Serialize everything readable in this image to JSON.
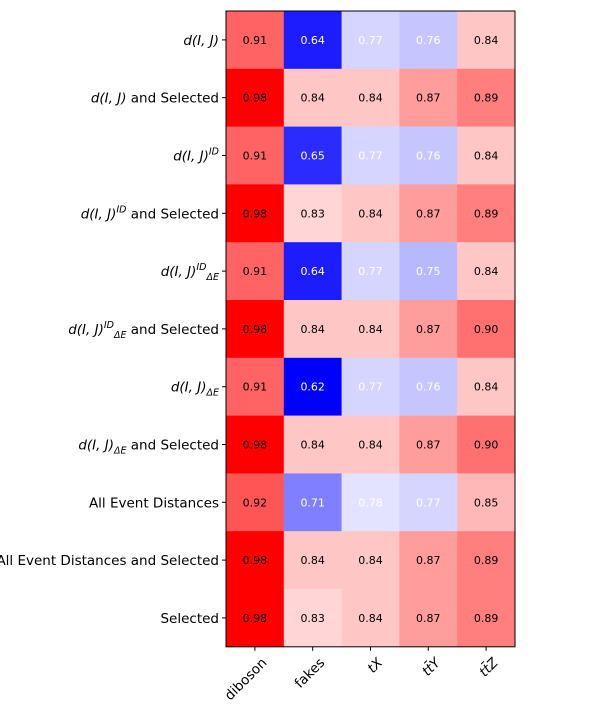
{
  "chart_data": {
    "type": "heatmap",
    "title": "",
    "xlabel": "",
    "ylabel": "",
    "colormap": "bwr",
    "color_low": "#0000ff",
    "color_mid": "#ffffff",
    "color_high": "#ff0000",
    "value_range": [
      0.62,
      0.98
    ],
    "colorbar": false,
    "grid": false,
    "columns": [
      {
        "parts": [
          {
            "t": "diboson",
            "i": false
          }
        ]
      },
      {
        "parts": [
          {
            "t": "fakes",
            "i": false
          }
        ]
      },
      {
        "parts": [
          {
            "t": "tX",
            "i": true
          }
        ]
      },
      {
        "parts": [
          {
            "t": "tt̄Y",
            "i": true
          }
        ]
      },
      {
        "parts": [
          {
            "t": "tt̄Z",
            "i": true
          }
        ]
      }
    ],
    "rows": [
      {
        "label": [
          {
            "t": "d(I, J)",
            "i": true
          }
        ],
        "values": [
          0.91,
          0.64,
          0.77,
          0.76,
          0.84
        ]
      },
      {
        "label": [
          {
            "t": "d(I, J)",
            "i": true
          },
          {
            "t": " and Selected",
            "i": false
          }
        ],
        "values": [
          0.98,
          0.84,
          0.84,
          0.87,
          0.89
        ]
      },
      {
        "label": [
          {
            "t": "d(I, J)",
            "i": true
          },
          {
            "t": "ID",
            "i": true,
            "sup": true
          }
        ],
        "values": [
          0.91,
          0.65,
          0.77,
          0.76,
          0.84
        ]
      },
      {
        "label": [
          {
            "t": "d(I, J)",
            "i": true
          },
          {
            "t": "ID",
            "i": true,
            "sup": true
          },
          {
            "t": " and Selected",
            "i": false
          }
        ],
        "values": [
          0.98,
          0.83,
          0.84,
          0.87,
          0.89
        ]
      },
      {
        "label": [
          {
            "t": "d(I, J)",
            "i": true
          },
          {
            "t": "ID",
            "i": true,
            "sup": true
          },
          {
            "t": "ΔE",
            "i": true,
            "sub": true
          }
        ],
        "values": [
          0.91,
          0.64,
          0.77,
          0.75,
          0.84
        ]
      },
      {
        "label": [
          {
            "t": "d(I, J)",
            "i": true
          },
          {
            "t": "ID",
            "i": true,
            "sup": true
          },
          {
            "t": "ΔE",
            "i": true,
            "sub": true
          },
          {
            "t": " and Selected",
            "i": false
          }
        ],
        "values": [
          0.98,
          0.84,
          0.84,
          0.87,
          0.9
        ]
      },
      {
        "label": [
          {
            "t": "d(I, J)",
            "i": true
          },
          {
            "t": "ΔE",
            "i": true,
            "sub": true
          }
        ],
        "values": [
          0.91,
          0.62,
          0.77,
          0.76,
          0.84
        ]
      },
      {
        "label": [
          {
            "t": "d(I, J)",
            "i": true
          },
          {
            "t": "ΔE",
            "i": true,
            "sub": true
          },
          {
            "t": " and Selected",
            "i": false
          }
        ],
        "values": [
          0.98,
          0.84,
          0.84,
          0.87,
          0.9
        ]
      },
      {
        "label": [
          {
            "t": "All Event Distances",
            "i": false
          }
        ],
        "values": [
          0.92,
          0.71,
          0.78,
          0.77,
          0.85
        ]
      },
      {
        "label": [
          {
            "t": "All Event Distances and Selected",
            "i": false
          }
        ],
        "values": [
          0.98,
          0.84,
          0.84,
          0.87,
          0.89
        ]
      },
      {
        "label": [
          {
            "t": "Selected",
            "i": false
          }
        ],
        "values": [
          0.98,
          0.83,
          0.84,
          0.87,
          0.89
        ]
      }
    ]
  }
}
